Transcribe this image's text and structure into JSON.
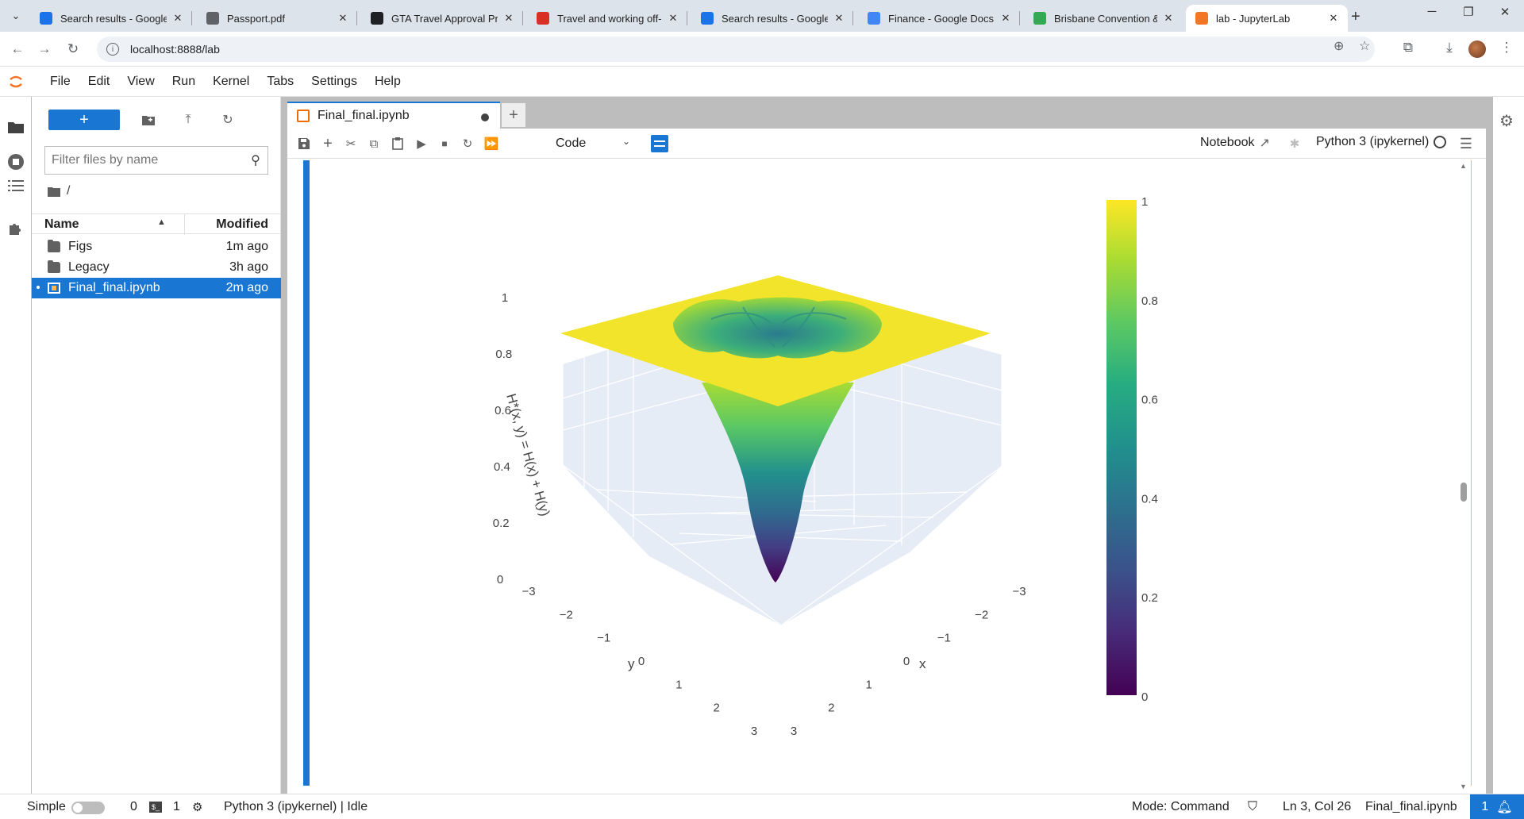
{
  "browser": {
    "tabs": [
      {
        "title": "Search results - Google Dr",
        "favicon": "google-drive-icon",
        "color": "#1a73e8"
      },
      {
        "title": "Passport.pdf",
        "favicon": "globe-icon",
        "color": "#5f6368"
      },
      {
        "title": "GTA Travel Approval Proc",
        "favicon": "openai-icon",
        "color": "#202124"
      },
      {
        "title": "Travel and working off-sit",
        "favicon": "pdf-icon",
        "color": "#d93025"
      },
      {
        "title": "Search results - Google Dr",
        "favicon": "google-drive-icon",
        "color": "#1a73e8"
      },
      {
        "title": "Finance - Google Docs",
        "favicon": "google-docs-icon",
        "color": "#4285f4"
      },
      {
        "title": "Brisbane Convention & Ex",
        "favicon": "google-maps-icon",
        "color": "#34a853"
      },
      {
        "title": "lab - JupyterLab",
        "favicon": "jupyter-icon",
        "color": "#f37626",
        "active": true
      }
    ],
    "url": "localhost:8888/lab"
  },
  "menubar": {
    "items": [
      "File",
      "Edit",
      "View",
      "Run",
      "Kernel",
      "Tabs",
      "Settings",
      "Help"
    ]
  },
  "filebrowser": {
    "filter_placeholder": "Filter files by name",
    "breadcrumb": "/",
    "col_name": "Name",
    "col_modified": "Modified",
    "files": [
      {
        "name": "Figs",
        "modified": "1m ago",
        "type": "folder"
      },
      {
        "name": "Legacy",
        "modified": "3h ago",
        "type": "folder"
      },
      {
        "name": "Final_final.ipynb",
        "modified": "2m ago",
        "type": "notebook",
        "selected": true
      }
    ]
  },
  "notebook": {
    "tab_title": "Final_final.ipynb",
    "cell_type": "Code",
    "notebook_label": "Notebook",
    "kernel_name": "Python 3 (ipykernel)"
  },
  "statusbar": {
    "mode_label": "Simple",
    "terminals": "0",
    "kernels": "1",
    "kernel_status": "Python 3 (ipykernel) | Idle",
    "mode": "Mode: Command",
    "cursor": "Ln 3, Col 26",
    "filename": "Final_final.ipynb",
    "notifications": "1"
  },
  "chart_data": {
    "type": "surface",
    "title": "",
    "xlabel": "x",
    "ylabel": "y",
    "zlabel": "H*(x, y) = H(x) + H(y)",
    "x_ticks": [
      "−3",
      "−2",
      "−1",
      "0",
      "1",
      "2",
      "3"
    ],
    "y_ticks": [
      "−3",
      "−2",
      "−1",
      "0",
      "1",
      "2",
      "3"
    ],
    "z_ticks": [
      "0",
      "0.2",
      "0.4",
      "0.6",
      "0.8",
      "1"
    ],
    "xlim": [
      -3,
      3
    ],
    "ylim": [
      -3,
      3
    ],
    "zlim": [
      0,
      1
    ],
    "colorscale": "Viridis",
    "colorbar_ticks": [
      "0",
      "0.2",
      "0.4",
      "0.6",
      "0.8",
      "1"
    ],
    "colorbar_range": [
      0,
      1
    ],
    "surface_summary": {
      "plateau_value": 1,
      "min_value": 0,
      "min_location": [
        0,
        0
      ]
    },
    "colors": {
      "low": "#440154",
      "mid": "#21918c",
      "high": "#fde725"
    }
  }
}
